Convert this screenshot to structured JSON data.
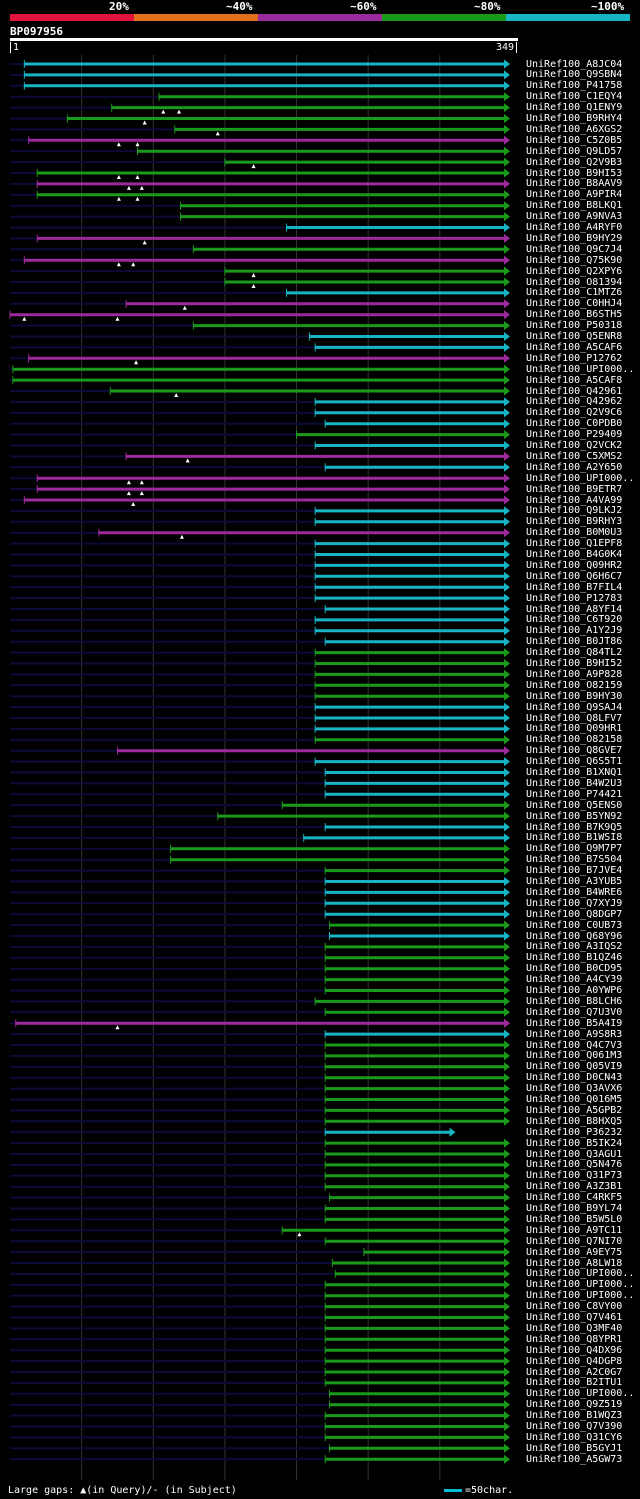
{
  "legend": {
    "segments": [
      {
        "label": "20%",
        "color": "#e0143c"
      },
      {
        "label": "~40%",
        "color": "#e0701a"
      },
      {
        "label": "~60%",
        "color": "#9c2a9c"
      },
      {
        "label": "~80%",
        "color": "#1a9a1a"
      },
      {
        "label": "~100%",
        "color": "#17b5c4"
      }
    ]
  },
  "query": {
    "id": "BP097956",
    "start": "1",
    "end": "349",
    "length": 349
  },
  "colors": {
    "c": "#17b5c4",
    "g": "#1a9a1a",
    "p": "#9c2a9c",
    "bg_track": "#0b0b3a",
    "grid": "#333333"
  },
  "hits": [
    {
      "name": "UniRef100_A8JC04",
      "c": "c",
      "s": 10,
      "e": 349,
      "t": []
    },
    {
      "name": "UniRef100_Q9SBN4",
      "c": "c",
      "s": 10,
      "e": 349,
      "t": []
    },
    {
      "name": "UniRef100_P41758",
      "c": "c",
      "s": 10,
      "e": 349,
      "t": []
    },
    {
      "name": "UniRef100_C1EQY4",
      "c": "g",
      "s": 104,
      "e": 349,
      "t": []
    },
    {
      "name": "UniRef100_Q1ENY9",
      "c": "g",
      "s": 71,
      "e": 349,
      "t": [
        107,
        118
      ]
    },
    {
      "name": "UniRef100_B9RHY4",
      "c": "g",
      "s": 40,
      "e": 349,
      "t": [
        94
      ]
    },
    {
      "name": "UniRef100_A6XGS2",
      "c": "g",
      "s": 115,
      "e": 349,
      "t": [
        145
      ]
    },
    {
      "name": "UniRef100_C5Z0B5",
      "c": "p",
      "s": 13,
      "e": 349,
      "t": [
        76,
        89
      ]
    },
    {
      "name": "UniRef100_Q9LD57",
      "c": "g",
      "s": 89,
      "e": 349,
      "t": []
    },
    {
      "name": "UniRef100_Q2V9B3",
      "c": "g",
      "s": 150,
      "e": 349,
      "t": [
        170
      ]
    },
    {
      "name": "UniRef100_B9HI53",
      "c": "g",
      "s": 19,
      "e": 349,
      "t": [
        76,
        89
      ]
    },
    {
      "name": "UniRef100_B8AAV9",
      "c": "p",
      "s": 19,
      "e": 349,
      "t": [
        83,
        92
      ]
    },
    {
      "name": "UniRef100_A9PIR4",
      "c": "g",
      "s": 19,
      "e": 349,
      "t": [
        76,
        89
      ]
    },
    {
      "name": "UniRef100_B8LKQ1",
      "c": "g",
      "s": 119,
      "e": 349,
      "t": []
    },
    {
      "name": "UniRef100_A9NVA3",
      "c": "g",
      "s": 119,
      "e": 349,
      "t": []
    },
    {
      "name": "UniRef100_A4RYF0",
      "c": "c",
      "s": 193,
      "e": 349,
      "t": []
    },
    {
      "name": "UniRef100_B9HY29",
      "c": "p",
      "s": 19,
      "e": 349,
      "t": [
        94
      ]
    },
    {
      "name": "UniRef100_Q9C7J4",
      "c": "g",
      "s": 128,
      "e": 349,
      "t": []
    },
    {
      "name": "UniRef100_Q75K90",
      "c": "p",
      "s": 10,
      "e": 349,
      "t": [
        76,
        86
      ]
    },
    {
      "name": "UniRef100_Q2XPY6",
      "c": "g",
      "s": 150,
      "e": 349,
      "t": [
        170
      ]
    },
    {
      "name": "UniRef100_O81394",
      "c": "g",
      "s": 150,
      "e": 349,
      "t": [
        170
      ]
    },
    {
      "name": "UniRef100_C1MTZ6",
      "c": "c",
      "s": 193,
      "e": 349,
      "t": []
    },
    {
      "name": "UniRef100_C0HHJ4",
      "c": "p",
      "s": 81,
      "e": 349,
      "t": [
        122
      ]
    },
    {
      "name": "UniRef100_B6STH5",
      "c": "p",
      "s": 0,
      "e": 349,
      "t": [
        10,
        75
      ]
    },
    {
      "name": "UniRef100_P50318",
      "c": "g",
      "s": 128,
      "e": 349,
      "t": []
    },
    {
      "name": "UniRef100_Q5ENR8",
      "c": "c",
      "s": 209,
      "e": 349,
      "t": []
    },
    {
      "name": "UniRef100_A5CAF6",
      "c": "c",
      "s": 213,
      "e": 349,
      "t": []
    },
    {
      "name": "UniRef100_P12762",
      "c": "p",
      "s": 13,
      "e": 349,
      "t": [
        88
      ]
    },
    {
      "name": "UniRef100_UPI000..",
      "c": "g",
      "s": 2,
      "e": 349,
      "t": []
    },
    {
      "name": "UniRef100_A5CAF8",
      "c": "g",
      "s": 2,
      "e": 349,
      "t": []
    },
    {
      "name": "UniRef100_Q42961",
      "c": "g",
      "s": 70,
      "e": 349,
      "t": [
        116
      ]
    },
    {
      "name": "UniRef100_Q42962",
      "c": "c",
      "s": 213,
      "e": 349,
      "t": []
    },
    {
      "name": "UniRef100_Q2V9C6",
      "c": "c",
      "s": 213,
      "e": 349,
      "t": []
    },
    {
      "name": "UniRef100_C0PDB0",
      "c": "c",
      "s": 220,
      "e": 349,
      "t": []
    },
    {
      "name": "UniRef100_P29409",
      "c": "g",
      "s": 200,
      "e": 349,
      "t": []
    },
    {
      "name": "UniRef100_Q2VCK2",
      "c": "c",
      "s": 213,
      "e": 349,
      "t": []
    },
    {
      "name": "UniRef100_C5XMS2",
      "c": "p",
      "s": 81,
      "e": 349,
      "t": [
        124
      ]
    },
    {
      "name": "UniRef100_A2Y650",
      "c": "c",
      "s": 220,
      "e": 349,
      "t": []
    },
    {
      "name": "UniRef100_UPI000..",
      "c": "p",
      "s": 19,
      "e": 349,
      "t": [
        83,
        92
      ]
    },
    {
      "name": "UniRef100_B9ETR7",
      "c": "p",
      "s": 19,
      "e": 349,
      "t": [
        83,
        92
      ]
    },
    {
      "name": "UniRef100_A4VA99",
      "c": "p",
      "s": 10,
      "e": 349,
      "t": [
        86
      ]
    },
    {
      "name": "UniRef100_Q9LKJ2",
      "c": "c",
      "s": 213,
      "e": 349,
      "t": []
    },
    {
      "name": "UniRef100_B9RHY3",
      "c": "c",
      "s": 213,
      "e": 349,
      "t": []
    },
    {
      "name": "UniRef100_B0M0U3",
      "c": "p",
      "s": 62,
      "e": 349,
      "t": [
        120
      ]
    },
    {
      "name": "UniRef100_Q1EPF8",
      "c": "c",
      "s": 213,
      "e": 349,
      "t": []
    },
    {
      "name": "UniRef100_B4G0K4",
      "c": "c",
      "s": 213,
      "e": 349,
      "t": []
    },
    {
      "name": "UniRef100_Q09HR2",
      "c": "c",
      "s": 213,
      "e": 349,
      "t": []
    },
    {
      "name": "UniRef100_Q6H6C7",
      "c": "c",
      "s": 213,
      "e": 349,
      "t": []
    },
    {
      "name": "UniRef100_B7FIL4",
      "c": "c",
      "s": 213,
      "e": 349,
      "t": []
    },
    {
      "name": "UniRef100_P12783",
      "c": "c",
      "s": 213,
      "e": 349,
      "t": []
    },
    {
      "name": "UniRef100_A8YF14",
      "c": "c",
      "s": 220,
      "e": 349,
      "t": []
    },
    {
      "name": "UniRef100_C6T920",
      "c": "c",
      "s": 213,
      "e": 349,
      "t": []
    },
    {
      "name": "UniRef100_A1Y2J9",
      "c": "c",
      "s": 213,
      "e": 349,
      "t": []
    },
    {
      "name": "UniRef100_B0JT86",
      "c": "c",
      "s": 220,
      "e": 349,
      "t": []
    },
    {
      "name": "UniRef100_Q84TL2",
      "c": "g",
      "s": 213,
      "e": 349,
      "t": []
    },
    {
      "name": "UniRef100_B9HI52",
      "c": "g",
      "s": 213,
      "e": 349,
      "t": []
    },
    {
      "name": "UniRef100_A9P828",
      "c": "g",
      "s": 213,
      "e": 349,
      "t": []
    },
    {
      "name": "UniRef100_O82159",
      "c": "g",
      "s": 213,
      "e": 349,
      "t": []
    },
    {
      "name": "UniRef100_B9HY30",
      "c": "g",
      "s": 213,
      "e": 349,
      "t": []
    },
    {
      "name": "UniRef100_Q9SAJ4",
      "c": "c",
      "s": 213,
      "e": 349,
      "t": []
    },
    {
      "name": "UniRef100_Q8LFV7",
      "c": "c",
      "s": 213,
      "e": 349,
      "t": []
    },
    {
      "name": "UniRef100_Q09HR1",
      "c": "c",
      "s": 213,
      "e": 349,
      "t": []
    },
    {
      "name": "UniRef100_O82158",
      "c": "g",
      "s": 213,
      "e": 349,
      "t": []
    },
    {
      "name": "UniRef100_Q8GVE7",
      "c": "p",
      "s": 75,
      "e": 349,
      "t": []
    },
    {
      "name": "UniRef100_Q6S5T1",
      "c": "c",
      "s": 213,
      "e": 349,
      "t": []
    },
    {
      "name": "UniRef100_B1XNQ1",
      "c": "c",
      "s": 220,
      "e": 349,
      "t": []
    },
    {
      "name": "UniRef100_B4W2U3",
      "c": "c",
      "s": 220,
      "e": 349,
      "t": []
    },
    {
      "name": "UniRef100_P74421",
      "c": "c",
      "s": 220,
      "e": 349,
      "t": []
    },
    {
      "name": "UniRef100_Q5ENS0",
      "c": "g",
      "s": 190,
      "e": 349,
      "t": []
    },
    {
      "name": "UniRef100_B5YN92",
      "c": "g",
      "s": 145,
      "e": 349,
      "t": []
    },
    {
      "name": "UniRef100_B7K9Q5",
      "c": "c",
      "s": 220,
      "e": 349,
      "t": []
    },
    {
      "name": "UniRef100_B1WSI8",
      "c": "c",
      "s": 205,
      "e": 349,
      "t": []
    },
    {
      "name": "UniRef100_Q9M7P7",
      "c": "g",
      "s": 112,
      "e": 349,
      "t": []
    },
    {
      "name": "UniRef100_B7S504",
      "c": "g",
      "s": 112,
      "e": 349,
      "t": []
    },
    {
      "name": "UniRef100_B7JVE4",
      "c": "g",
      "s": 220,
      "e": 349,
      "t": []
    },
    {
      "name": "UniRef100_A3YUB5",
      "c": "c",
      "s": 220,
      "e": 349,
      "t": []
    },
    {
      "name": "UniRef100_B4WRE6",
      "c": "c",
      "s": 220,
      "e": 349,
      "t": []
    },
    {
      "name": "UniRef100_Q7XYJ9",
      "c": "c",
      "s": 220,
      "e": 349,
      "t": []
    },
    {
      "name": "UniRef100_Q8DGP7",
      "c": "c",
      "s": 220,
      "e": 349,
      "t": []
    },
    {
      "name": "UniRef100_C0UB73",
      "c": "g",
      "s": 223,
      "e": 349,
      "t": []
    },
    {
      "name": "UniRef100_Q68Y96",
      "c": "c",
      "s": 223,
      "e": 349,
      "t": []
    },
    {
      "name": "UniRef100_A3IQS2",
      "c": "g",
      "s": 220,
      "e": 349,
      "t": []
    },
    {
      "name": "UniRef100_B1QZ46",
      "c": "g",
      "s": 220,
      "e": 349,
      "t": []
    },
    {
      "name": "UniRef100_B0CD95",
      "c": "g",
      "s": 220,
      "e": 349,
      "t": []
    },
    {
      "name": "UniRef100_A4CY39",
      "c": "g",
      "s": 220,
      "e": 349,
      "t": []
    },
    {
      "name": "UniRef100_A0YWP6",
      "c": "g",
      "s": 220,
      "e": 349,
      "t": []
    },
    {
      "name": "UniRef100_B8LCH6",
      "c": "g",
      "s": 213,
      "e": 349,
      "t": []
    },
    {
      "name": "UniRef100_Q7U3V0",
      "c": "g",
      "s": 220,
      "e": 349,
      "t": []
    },
    {
      "name": "UniRef100_B5A4I9",
      "c": "p",
      "s": 4,
      "e": 349,
      "t": [
        75
      ]
    },
    {
      "name": "UniRef100_A9S8R3",
      "c": "c",
      "s": 220,
      "e": 349,
      "t": []
    },
    {
      "name": "UniRef100_Q4C7V3",
      "c": "g",
      "s": 220,
      "e": 349,
      "t": []
    },
    {
      "name": "UniRef100_Q061M3",
      "c": "g",
      "s": 220,
      "e": 349,
      "t": []
    },
    {
      "name": "UniRef100_Q05VI9",
      "c": "g",
      "s": 220,
      "e": 349,
      "t": []
    },
    {
      "name": "UniRef100_D0CN43",
      "c": "g",
      "s": 220,
      "e": 349,
      "t": []
    },
    {
      "name": "UniRef100_Q3AVX6",
      "c": "g",
      "s": 220,
      "e": 349,
      "t": []
    },
    {
      "name": "UniRef100_Q016M5",
      "c": "g",
      "s": 220,
      "e": 349,
      "t": []
    },
    {
      "name": "UniRef100_A5GPB2",
      "c": "g",
      "s": 220,
      "e": 349,
      "t": []
    },
    {
      "name": "UniRef100_B8HXQ5",
      "c": "g",
      "s": 220,
      "e": 349,
      "t": []
    },
    {
      "name": "UniRef100_P36232",
      "c": "c",
      "s": 220,
      "e": 311,
      "t": []
    },
    {
      "name": "UniRef100_B5IK24",
      "c": "g",
      "s": 220,
      "e": 349,
      "t": []
    },
    {
      "name": "UniRef100_Q3AGU1",
      "c": "g",
      "s": 220,
      "e": 349,
      "t": []
    },
    {
      "name": "UniRef100_Q5N476",
      "c": "g",
      "s": 220,
      "e": 349,
      "t": []
    },
    {
      "name": "UniRef100_Q31P73",
      "c": "g",
      "s": 220,
      "e": 349,
      "t": []
    },
    {
      "name": "UniRef100_A3Z3B1",
      "c": "g",
      "s": 220,
      "e": 349,
      "t": []
    },
    {
      "name": "UniRef100_C4RKF5",
      "c": "g",
      "s": 223,
      "e": 349,
      "t": []
    },
    {
      "name": "UniRef100_B9YL74",
      "c": "g",
      "s": 220,
      "e": 349,
      "t": []
    },
    {
      "name": "UniRef100_B5W5L0",
      "c": "g",
      "s": 220,
      "e": 349,
      "t": []
    },
    {
      "name": "UniRef100_A9TC11",
      "c": "g",
      "s": 190,
      "e": 349,
      "t": [
        202
      ]
    },
    {
      "name": "UniRef100_Q7NI70",
      "c": "g",
      "s": 220,
      "e": 349,
      "t": []
    },
    {
      "name": "UniRef100_A9EY75",
      "c": "g",
      "s": 247,
      "e": 349,
      "t": []
    },
    {
      "name": "UniRef100_A8LW18",
      "c": "g",
      "s": 225,
      "e": 349,
      "t": []
    },
    {
      "name": "UniRef100_UPI000..",
      "c": "g",
      "s": 227,
      "e": 349,
      "t": []
    },
    {
      "name": "UniRef100_UPI000..",
      "c": "g",
      "s": 220,
      "e": 349,
      "t": []
    },
    {
      "name": "UniRef100_UPI000..",
      "c": "g",
      "s": 220,
      "e": 349,
      "t": []
    },
    {
      "name": "UniRef100_C8VY00",
      "c": "g",
      "s": 220,
      "e": 349,
      "t": []
    },
    {
      "name": "UniRef100_Q7V461",
      "c": "g",
      "s": 220,
      "e": 349,
      "t": []
    },
    {
      "name": "UniRef100_Q3MF40",
      "c": "g",
      "s": 220,
      "e": 349,
      "t": []
    },
    {
      "name": "UniRef100_Q8YPR1",
      "c": "g",
      "s": 220,
      "e": 349,
      "t": []
    },
    {
      "name": "UniRef100_Q4DX96",
      "c": "g",
      "s": 220,
      "e": 349,
      "t": []
    },
    {
      "name": "UniRef100_Q4DGP8",
      "c": "g",
      "s": 220,
      "e": 349,
      "t": []
    },
    {
      "name": "UniRef100_A2C0G7",
      "c": "g",
      "s": 220,
      "e": 349,
      "t": []
    },
    {
      "name": "UniRef100_B2ITU1",
      "c": "g",
      "s": 220,
      "e": 349,
      "t": []
    },
    {
      "name": "UniRef100_UPI000..",
      "c": "g",
      "s": 223,
      "e": 349,
      "t": []
    },
    {
      "name": "UniRef100_Q9Z519",
      "c": "g",
      "s": 223,
      "e": 349,
      "t": []
    },
    {
      "name": "UniRef100_B1WQZ3",
      "c": "g",
      "s": 220,
      "e": 349,
      "t": []
    },
    {
      "name": "UniRef100_Q7V390",
      "c": "g",
      "s": 220,
      "e": 349,
      "t": []
    },
    {
      "name": "UniRef100_Q31CY6",
      "c": "g",
      "s": 220,
      "e": 349,
      "t": []
    },
    {
      "name": "UniRef100_B5GYJ1",
      "c": "g",
      "s": 223,
      "e": 349,
      "t": []
    },
    {
      "name": "UniRef100_A5GW73",
      "c": "g",
      "s": 220,
      "e": 349,
      "t": []
    }
  ],
  "footer": {
    "gaps_label": "Large gaps: ▲(in Query)/- (in Subject)",
    "scale_label": "=50char."
  }
}
